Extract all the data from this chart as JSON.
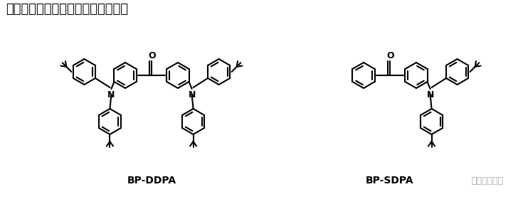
{
  "title": "含二苯甲酮的蓝色荧光材料的结构式",
  "label_left": "BP-DDPA",
  "label_right": "BP-SDPA",
  "watermark": "西安齐岳生物",
  "bg_color": "#ffffff",
  "title_fontsize": 13,
  "label_fontsize": 10,
  "watermark_fontsize": 9,
  "fig_width": 7.28,
  "fig_height": 2.94,
  "dpi": 100
}
